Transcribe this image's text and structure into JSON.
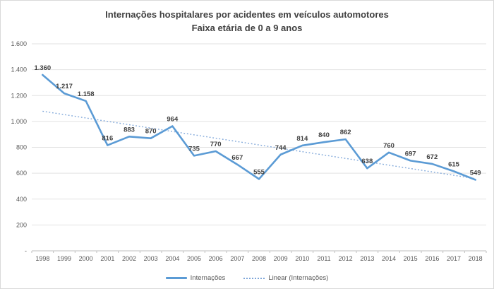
{
  "chart_data": {
    "type": "line",
    "title": "Internações hospitalares por acidentes em veículos automotores",
    "subtitle": "Faixa etária de 0 a 9 anos",
    "categories": [
      "1998",
      "1999",
      "2000",
      "2001",
      "2002",
      "2003",
      "2004",
      "2005",
      "2006",
      "2007",
      "2008",
      "2009",
      "2010",
      "2011",
      "2012",
      "2013",
      "2014",
      "2015",
      "2016",
      "2017",
      "2018"
    ],
    "series": [
      {
        "name": "Internações",
        "values": [
          1360,
          1217,
          1158,
          816,
          883,
          870,
          964,
          735,
          770,
          667,
          555,
          744,
          814,
          840,
          862,
          638,
          760,
          697,
          672,
          615,
          549
        ],
        "labels": [
          "1.360",
          "1.217",
          "1.158",
          "816",
          "883",
          "870",
          "964",
          "735",
          "770",
          "667",
          "555",
          "744",
          "814",
          "840",
          "862",
          "638",
          "760",
          "697",
          "672",
          "615",
          "549"
        ]
      }
    ],
    "trendline": {
      "name": "Linear (Internações)",
      "start_value": 1079,
      "end_value": 558
    },
    "y_axis": {
      "ylim": [
        0,
        1600
      ],
      "tick_values": [
        0,
        200,
        400,
        600,
        800,
        1000,
        1200,
        1400,
        1600
      ],
      "tick_labels": [
        "-",
        "200",
        "400",
        "600",
        "800",
        "1.000",
        "1.200",
        "1.400",
        "1.600"
      ]
    },
    "legend_position": "bottom",
    "grid": true,
    "colors": {
      "series_line": "#5b9bd5",
      "trendline": "#7ea6d9",
      "data_label": "#404040",
      "axis_text": "#595959",
      "gridline": "#e2e2e2",
      "axis_line": "#bfbfbf",
      "title_text": "#404040",
      "border": "#d9d9d9"
    }
  }
}
